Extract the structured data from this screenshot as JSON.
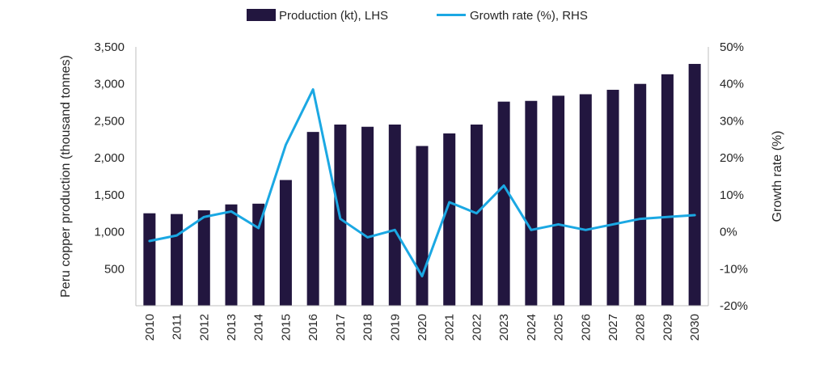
{
  "chart_data": {
    "type": "bar",
    "categories": [
      "2010",
      "2011",
      "2012",
      "2013",
      "2014",
      "2015",
      "2016",
      "2017",
      "2018",
      "2019",
      "2020",
      "2021",
      "2022",
      "2023",
      "2024",
      "2025",
      "2026",
      "2027",
      "2028",
      "2029",
      "2030"
    ],
    "series": [
      {
        "name": "Production (kt), LHS",
        "type": "bar",
        "axis": "left",
        "color": "#22163f",
        "values": [
          1250,
          1240,
          1290,
          1370,
          1380,
          1700,
          2350,
          2450,
          2420,
          2450,
          2160,
          2330,
          2450,
          2760,
          2770,
          2840,
          2860,
          2920,
          3000,
          3130,
          3270
        ]
      },
      {
        "name": "Growth rate (%), RHS",
        "type": "line",
        "axis": "right",
        "color": "#1ba8e3",
        "values": [
          -2.5,
          -1.0,
          4.0,
          5.5,
          1.0,
          23.5,
          38.5,
          3.5,
          -1.5,
          0.5,
          -12.0,
          8.0,
          5.0,
          12.5,
          0.5,
          2.0,
          0.5,
          2.0,
          3.5,
          4.0,
          4.5
        ]
      }
    ],
    "y_left": {
      "label": "Peru copper production (thousand tonnes)",
      "range": [
        0,
        3500
      ],
      "ticks": [
        500,
        1000,
        1500,
        2000,
        2500,
        3000,
        3500
      ],
      "tick_labels": [
        "500",
        "1,000",
        "1,500",
        "2,000",
        "2,500",
        "3,000",
        "3,500"
      ]
    },
    "y_right": {
      "label": "Growth rate (%)",
      "range": [
        -20,
        50
      ],
      "ticks": [
        -20,
        -10,
        0,
        10,
        20,
        30,
        40,
        50
      ],
      "tick_labels": [
        "-20%",
        "-10%",
        "0%",
        "10%",
        "20%",
        "30%",
        "40%",
        "50%"
      ]
    },
    "grid": false,
    "legend_position": "top-center"
  }
}
